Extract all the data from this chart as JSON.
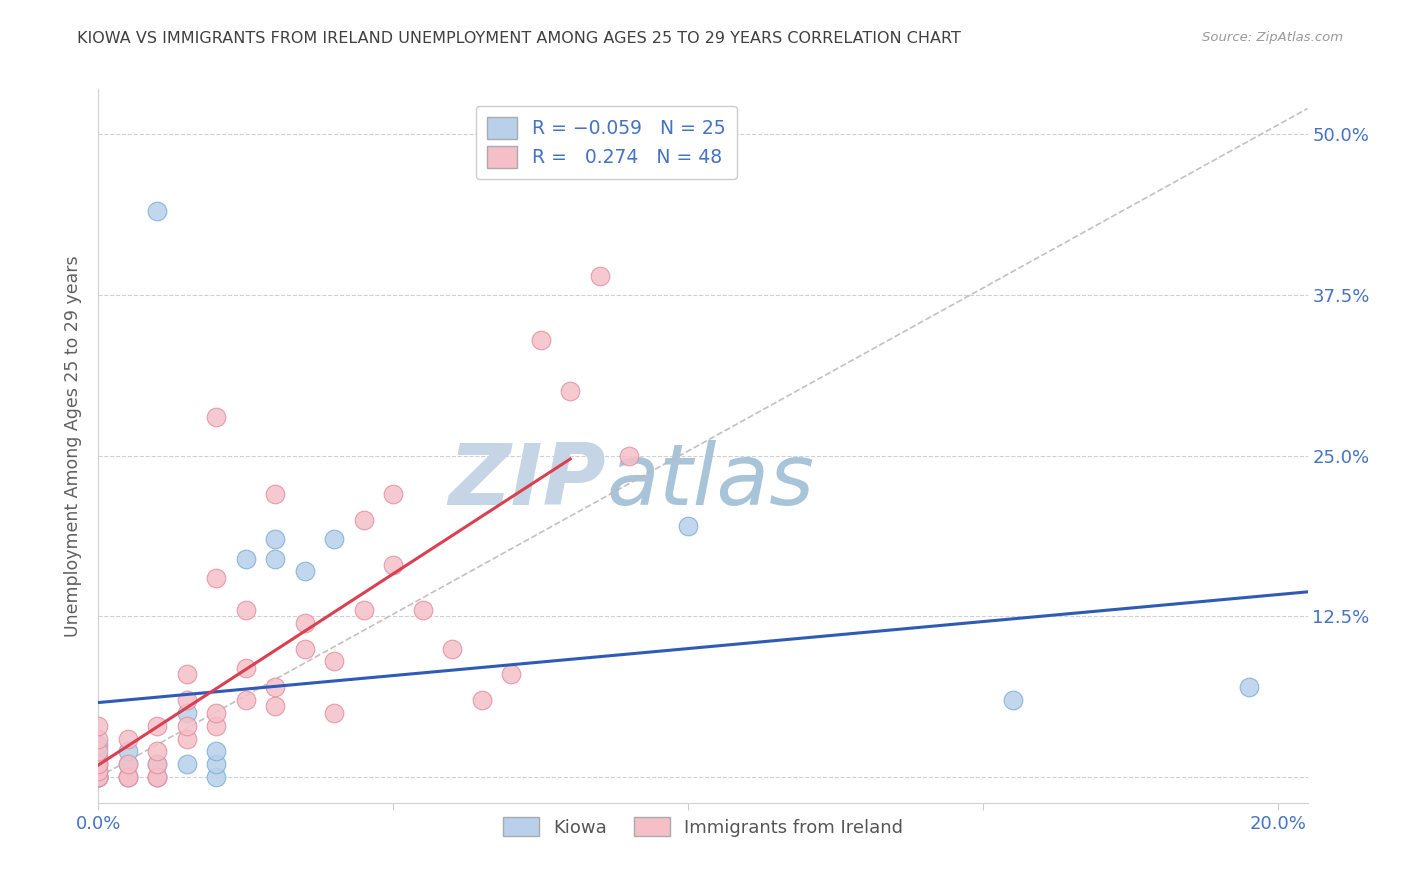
{
  "title": "KIOWA VS IMMIGRANTS FROM IRELAND UNEMPLOYMENT AMONG AGES 25 TO 29 YEARS CORRELATION CHART",
  "source": "Source: ZipAtlas.com",
  "ylabel": "Unemployment Among Ages 25 to 29 years",
  "x_ticks": [
    0.0,
    0.05,
    0.1,
    0.15,
    0.2
  ],
  "y_ticks": [
    0.0,
    0.125,
    0.25,
    0.375,
    0.5
  ],
  "xlim": [
    0.0,
    0.205
  ],
  "ylim": [
    -0.02,
    0.535
  ],
  "series1_name": "Kiowa",
  "series1_color": "#b8d0ea",
  "series1_edge": "#7bafd4",
  "series2_name": "Immigrants from Ireland",
  "series2_color": "#f5bfc8",
  "series2_edge": "#e090a0",
  "trend1_color": "#2f5bb7",
  "trend2_color": "#d94050",
  "ref_line_color": "#c0b8b8",
  "watermark_zip": "ZIP",
  "watermark_atlas": "atlas",
  "watermark_color_zip": "#c8d4e0",
  "watermark_color_atlas": "#b0c8d8",
  "title_color": "#404040",
  "tick_label_color": "#4472c4",
  "ylabel_color": "#606060",
  "kiowa_x": [
    0.0,
    0.0,
    0.0,
    0.0,
    0.0,
    0.0,
    0.0,
    0.005,
    0.005,
    0.005,
    0.01,
    0.01,
    0.01,
    0.015,
    0.015,
    0.02,
    0.02,
    0.02,
    0.025,
    0.03,
    0.03,
    0.035,
    0.04,
    0.1,
    0.155,
    0.195
  ],
  "kiowa_y": [
    0.0,
    0.0,
    0.0,
    0.005,
    0.01,
    0.015,
    0.025,
    0.0,
    0.01,
    0.02,
    0.0,
    0.01,
    0.44,
    0.01,
    0.05,
    0.0,
    0.01,
    0.02,
    0.17,
    0.17,
    0.185,
    0.16,
    0.185,
    0.195,
    0.06,
    0.07
  ],
  "ireland_x": [
    0.0,
    0.0,
    0.0,
    0.0,
    0.0,
    0.0,
    0.0,
    0.0,
    0.005,
    0.005,
    0.005,
    0.005,
    0.01,
    0.01,
    0.01,
    0.01,
    0.01,
    0.015,
    0.015,
    0.015,
    0.015,
    0.02,
    0.02,
    0.02,
    0.02,
    0.025,
    0.025,
    0.025,
    0.03,
    0.03,
    0.03,
    0.035,
    0.035,
    0.04,
    0.04,
    0.045,
    0.045,
    0.05,
    0.05,
    0.055,
    0.06,
    0.065,
    0.07,
    0.075,
    0.08,
    0.085,
    0.09
  ],
  "ireland_y": [
    0.0,
    0.0,
    0.0,
    0.005,
    0.01,
    0.02,
    0.03,
    0.04,
    0.0,
    0.0,
    0.01,
    0.03,
    0.0,
    0.0,
    0.01,
    0.02,
    0.04,
    0.03,
    0.04,
    0.06,
    0.08,
    0.04,
    0.05,
    0.155,
    0.28,
    0.06,
    0.085,
    0.13,
    0.055,
    0.07,
    0.22,
    0.1,
    0.12,
    0.05,
    0.09,
    0.13,
    0.2,
    0.165,
    0.22,
    0.13,
    0.1,
    0.06,
    0.08,
    0.34,
    0.3,
    0.39,
    0.25
  ]
}
